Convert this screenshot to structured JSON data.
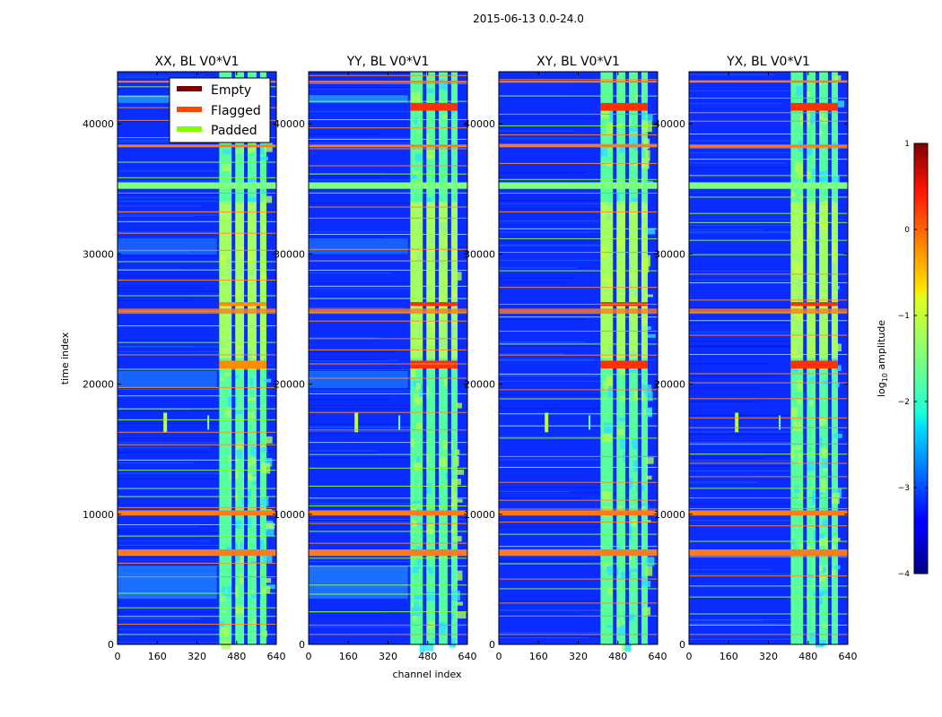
{
  "chart_data": {
    "type": "heatmap",
    "suptitle": "2015-06-13 0.0-24.0",
    "panels": [
      {
        "title": "XX, BL V0*V1",
        "polarization": "XX"
      },
      {
        "title": "YY, BL V0*V1",
        "polarization": "YY"
      },
      {
        "title": "XY, BL V0*V1",
        "polarization": "XY"
      },
      {
        "title": "YX, BL V0*V1",
        "polarization": "YX"
      }
    ],
    "xlabel": "channel index",
    "ylabel": "time index",
    "xlim": [
      0,
      640
    ],
    "ylim": [
      0,
      44000
    ],
    "xticks": [
      0,
      160,
      320,
      480,
      640
    ],
    "xtick_labels": [
      "0",
      "160",
      "320",
      "480",
      "640"
    ],
    "yticks": [
      0,
      10000,
      20000,
      30000,
      40000
    ],
    "ytick_labels": [
      "0",
      "10000",
      "20000",
      "30000",
      "40000"
    ],
    "colorbar": {
      "label_prefix": "log",
      "label_sub": "10",
      "label_suffix": " amplitude",
      "range": [
        -4,
        1
      ],
      "ticks": [
        1,
        0,
        -1,
        -2,
        -3,
        -4
      ],
      "tick_labels": [
        "1",
        "0",
        "−1",
        "−2",
        "−3",
        "−4"
      ],
      "colormap": "jet"
    },
    "legend": {
      "location": "top-right of first panel",
      "entries": [
        {
          "label": "Empty",
          "color": "#7f0000"
        },
        {
          "label": "Flagged",
          "color": "#ff4500"
        },
        {
          "label": "Padded",
          "color": "#7fff00"
        }
      ]
    },
    "rfi_band_channels": [
      410,
      600
    ],
    "rfi_gap_channels": [
      460,
      510,
      560
    ],
    "flagged_time_rows": [
      7000,
      7300,
      10000,
      10200,
      25500,
      25700,
      35200,
      35400,
      38300,
      42900,
      43300
    ],
    "padded_time_rows": [
      35100,
      35500
    ],
    "hotspot_time_ranges": [
      [
        21200,
        21800
      ],
      [
        26000,
        26300
      ],
      [
        41000,
        41600
      ]
    ]
  }
}
